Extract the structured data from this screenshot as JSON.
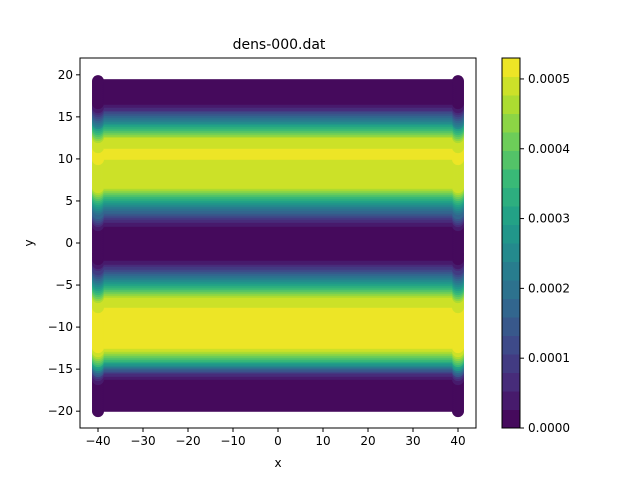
{
  "chart_data": {
    "type": "heatmap",
    "title": "dens-000.dat",
    "xlabel": "x",
    "ylabel": "y",
    "xlim": [
      -44,
      44
    ],
    "ylim": [
      -22,
      22
    ],
    "x_ticks": [
      -40,
      -30,
      -20,
      -10,
      0,
      10,
      20,
      30,
      40
    ],
    "y_ticks": [
      -20,
      -15,
      -10,
      -5,
      0,
      5,
      10,
      15,
      20
    ],
    "x_tick_labels": [
      "−40",
      "−30",
      "−20",
      "−10",
      "0",
      "10",
      "20",
      "30",
      "40"
    ],
    "y_tick_labels": [
      "−20",
      "−15",
      "−10",
      "−5",
      "0",
      "5",
      "10",
      "15",
      "20"
    ],
    "data_x_range": [
      -40,
      40
    ],
    "data_y_range": [
      -20,
      19.5
    ],
    "density_profile": {
      "description_of_values": "density depends on y only; piecewise profile in data units",
      "y": [
        -20,
        -16.5,
        -15.5,
        -14,
        -12.5,
        -8,
        -6.5,
        -4,
        -2.5,
        -1.5,
        1.5,
        2.5,
        4,
        6.5,
        11,
        12.5,
        14,
        16,
        17,
        19.5
      ],
      "value": [
        0.0,
        0.0,
        8e-05,
        0.00035,
        0.00051,
        0.00051,
        0.00048,
        0.0002,
        5e-05,
        0.0,
        0.0,
        5e-05,
        0.0002,
        0.00048,
        0.00051,
        0.00048,
        0.0003,
        6e-05,
        0.0,
        0.0
      ]
    },
    "colorbar": {
      "min": 0.0,
      "max": 0.00053,
      "levels": 20,
      "ticks": [
        0.0,
        0.0001,
        0.0002,
        0.0003,
        0.0004,
        0.0005
      ],
      "tick_labels": [
        "0.0000",
        "0.0001",
        "0.0002",
        "0.0003",
        "0.0004",
        "0.0005"
      ],
      "colormap": "viridis"
    },
    "grid": false,
    "legend": "none"
  }
}
